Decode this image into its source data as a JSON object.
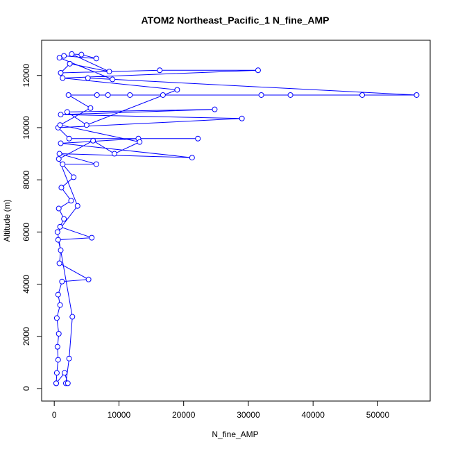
{
  "chart_data": {
    "type": "line",
    "title": "ATOM2 Northeast_Pacific_1 N_fine_AMP",
    "xlabel": "N_fine_AMP",
    "ylabel": "Altitude (m)",
    "color": "#0000ff",
    "x": [
      300,
      400,
      600,
      500,
      700,
      400,
      900,
      600,
      1200,
      5300,
      800,
      1000,
      600,
      5800,
      900,
      1500,
      700,
      2600,
      1100,
      3000,
      1300,
      6500,
      800,
      21300,
      1000,
      13000,
      22200,
      2300,
      600,
      29000,
      1000,
      24800,
      2000,
      5000,
      19000,
      1300,
      31500,
      16300,
      1000,
      2400,
      8500,
      2700,
      4200,
      6500,
      1500,
      800,
      9000,
      5200,
      56000,
      47600,
      36500,
      32000,
      16800,
      11700,
      8300,
      6600,
      2200,
      5600,
      900,
      13200,
      9300,
      6000,
      700,
      3600,
      500,
      2800,
      2300,
      1800,
      2100,
      1600,
      300
    ],
    "values": [
      200,
      600,
      1100,
      1600,
      2100,
      2700,
      3200,
      3600,
      4100,
      4180,
      4800,
      5300,
      5700,
      5780,
      6200,
      6500,
      6900,
      7200,
      7700,
      8100,
      8600,
      8600,
      9000,
      8850,
      9400,
      9580,
      9580,
      9580,
      10000,
      10350,
      10500,
      10700,
      10600,
      10100,
      11450,
      11900,
      12200,
      12200,
      12100,
      12450,
      12150,
      12820,
      12800,
      12650,
      12750,
      12680,
      11850,
      11900,
      11250,
      11250,
      11250,
      11250,
      11250,
      11250,
      11250,
      11250,
      11250,
      10750,
      10100,
      9450,
      9000,
      9500,
      8800,
      7000,
      6000,
      2750,
      1150,
      200,
      200,
      600,
      200
    ],
    "xlim": [
      -1950,
      58100
    ],
    "ylim": [
      -480,
      13350
    ],
    "xticks": [
      0,
      10000,
      20000,
      30000,
      40000,
      50000
    ],
    "yticks": [
      0,
      2000,
      4000,
      6000,
      8000,
      10000,
      12000
    ]
  }
}
